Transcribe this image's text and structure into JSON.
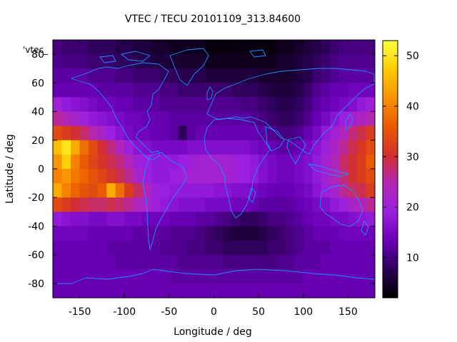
{
  "chart_data": {
    "type": "heatmap",
    "title": "VTEC / TECU 20101109_313.84600",
    "xlabel": "Longitude / deg",
    "ylabel": "Latitude / deg",
    "legend_key": "'vtec_",
    "xlim": [
      -180,
      180
    ],
    "ylim": [
      -90,
      90
    ],
    "xticks": [
      -150,
      -100,
      -50,
      0,
      50,
      100,
      150
    ],
    "yticks": [
      -80,
      -60,
      -40,
      -20,
      0,
      20,
      40,
      60,
      80
    ],
    "colorbar": {
      "min": 2,
      "max": 53,
      "ticks": [
        10,
        20,
        30,
        40,
        50
      ]
    },
    "colormap": [
      "#000000",
      "#2c0057",
      "#6a00b8",
      "#9b1fe0",
      "#b226b6",
      "#d4302d",
      "#ea5a00",
      "#f99200",
      "#ffcc00",
      "#ffff40"
    ],
    "coastline_color": "#1e90ff",
    "grid": false,
    "region_values": {
      "lon_centers": [
        -175,
        -165,
        -155,
        -145,
        -135,
        -125,
        -115,
        -105,
        -95,
        -85,
        -75,
        -65,
        -55,
        -45,
        -35,
        -25,
        -15,
        -5,
        5,
        15,
        25,
        35,
        45,
        55,
        65,
        75,
        85,
        95,
        105,
        115,
        125,
        135,
        145,
        155,
        165,
        175
      ],
      "lat_centers": [
        85,
        75,
        65,
        55,
        45,
        35,
        25,
        15,
        5,
        -5,
        -15,
        -25,
        -35,
        -45,
        -55,
        -65,
        -75,
        -85
      ],
      "vtec": [
        [
          10,
          9,
          9,
          9,
          8,
          8,
          8,
          7,
          7,
          6,
          6,
          5,
          5,
          4,
          4,
          4,
          4,
          3,
          3,
          3,
          3,
          3,
          3,
          3,
          3,
          4,
          4,
          5,
          6,
          7,
          8,
          9,
          10,
          10,
          10,
          10
        ],
        [
          11,
          10,
          10,
          10,
          9,
          9,
          9,
          8,
          8,
          7,
          7,
          6,
          6,
          5,
          5,
          5,
          5,
          4,
          4,
          4,
          4,
          4,
          4,
          4,
          4,
          5,
          5,
          6,
          7,
          8,
          9,
          10,
          11,
          11,
          11,
          11
        ],
        [
          12,
          12,
          12,
          12,
          11,
          11,
          11,
          10,
          10,
          9,
          9,
          9,
          8,
          8,
          7,
          7,
          7,
          6,
          6,
          6,
          6,
          6,
          6,
          5,
          5,
          5,
          5,
          6,
          7,
          9,
          10,
          11,
          12,
          12,
          12,
          12
        ],
        [
          13,
          13,
          13,
          13,
          13,
          12,
          12,
          12,
          12,
          11,
          11,
          11,
          10,
          10,
          9,
          9,
          9,
          9,
          9,
          9,
          8,
          8,
          8,
          7,
          6,
          6,
          6,
          7,
          9,
          11,
          12,
          13,
          13,
          14,
          14,
          14
        ],
        [
          20,
          18,
          17,
          16,
          15,
          14,
          14,
          13,
          13,
          12,
          12,
          12,
          11,
          11,
          11,
          11,
          11,
          11,
          11,
          11,
          11,
          10,
          10,
          9,
          8,
          7,
          7,
          8,
          10,
          12,
          13,
          14,
          15,
          16,
          18,
          20
        ],
        [
          26,
          24,
          22,
          20,
          18,
          17,
          16,
          15,
          14,
          14,
          13,
          13,
          13,
          12,
          12,
          12,
          12,
          12,
          12,
          12,
          12,
          12,
          11,
          10,
          9,
          8,
          8,
          9,
          11,
          13,
          15,
          17,
          19,
          21,
          23,
          25
        ],
        [
          34,
          32,
          30,
          28,
          25,
          22,
          19,
          17,
          15,
          14,
          14,
          13,
          13,
          12,
          8,
          12,
          13,
          13,
          13,
          13,
          13,
          13,
          13,
          12,
          11,
          10,
          10,
          11,
          13,
          15,
          18,
          21,
          24,
          27,
          29,
          32
        ],
        [
          46,
          50,
          44,
          38,
          34,
          30,
          27,
          24,
          20,
          17,
          16,
          15,
          15,
          15,
          15,
          16,
          16,
          16,
          16,
          16,
          16,
          16,
          15,
          14,
          13,
          12,
          12,
          13,
          15,
          17,
          20,
          23,
          26,
          29,
          31,
          34
        ],
        [
          42,
          48,
          40,
          36,
          33,
          31,
          29,
          27,
          24,
          20,
          19,
          18,
          18,
          18,
          19,
          20,
          21,
          21,
          21,
          21,
          20,
          19,
          18,
          16,
          15,
          14,
          14,
          15,
          16,
          18,
          21,
          24,
          28,
          30,
          32,
          36
        ],
        [
          40,
          42,
          39,
          37,
          35,
          33,
          31,
          29,
          26,
          22,
          19,
          18,
          18,
          19,
          20,
          21,
          21,
          21,
          21,
          21,
          20,
          19,
          18,
          16,
          15,
          14,
          14,
          15,
          16,
          18,
          21,
          24,
          27,
          30,
          32,
          34
        ],
        [
          44,
          40,
          37,
          35,
          34,
          36,
          44,
          38,
          32,
          28,
          24,
          20,
          19,
          18,
          18,
          18,
          18,
          18,
          17,
          17,
          16,
          16,
          15,
          14,
          13,
          13,
          13,
          14,
          15,
          17,
          19,
          22,
          26,
          28,
          29,
          32
        ],
        [
          34,
          32,
          30,
          29,
          28,
          28,
          29,
          28,
          26,
          24,
          22,
          20,
          18,
          17,
          16,
          16,
          16,
          15,
          15,
          15,
          14,
          14,
          13,
          12,
          12,
          12,
          12,
          13,
          14,
          15,
          16,
          18,
          20,
          22,
          24,
          26
        ],
        [
          18,
          17,
          16,
          16,
          15,
          15,
          16,
          16,
          15,
          15,
          14,
          14,
          14,
          13,
          13,
          13,
          12,
          12,
          11,
          10,
          9,
          8,
          8,
          9,
          10,
          10,
          11,
          12,
          13,
          14,
          14,
          15,
          15,
          16,
          17,
          18
        ],
        [
          14,
          14,
          14,
          14,
          13,
          13,
          13,
          13,
          13,
          12,
          12,
          12,
          12,
          11,
          11,
          11,
          10,
          9,
          8,
          7,
          6,
          6,
          6,
          7,
          8,
          9,
          10,
          11,
          12,
          13,
          13,
          13,
          14,
          14,
          14,
          14
        ],
        [
          13,
          13,
          13,
          13,
          13,
          13,
          12,
          12,
          12,
          12,
          12,
          12,
          11,
          11,
          11,
          10,
          10,
          9,
          9,
          8,
          8,
          8,
          8,
          8,
          9,
          9,
          10,
          11,
          12,
          12,
          12,
          13,
          13,
          13,
          13,
          13
        ],
        [
          13,
          13,
          13,
          13,
          13,
          13,
          13,
          12,
          12,
          12,
          12,
          12,
          12,
          12,
          11,
          11,
          11,
          11,
          11,
          10,
          10,
          10,
          10,
          10,
          10,
          11,
          11,
          12,
          12,
          12,
          13,
          13,
          13,
          13,
          13,
          13
        ],
        [
          13,
          13,
          13,
          13,
          13,
          13,
          13,
          13,
          13,
          13,
          13,
          13,
          13,
          12,
          12,
          12,
          12,
          12,
          12,
          12,
          12,
          12,
          12,
          12,
          12,
          12,
          12,
          12,
          13,
          13,
          13,
          13,
          13,
          13,
          13,
          13
        ],
        [
          13,
          13,
          13,
          13,
          13,
          13,
          13,
          13,
          13,
          13,
          13,
          13,
          13,
          13,
          13,
          13,
          13,
          13,
          13,
          13,
          13,
          13,
          13,
          13,
          13,
          13,
          13,
          13,
          13,
          13,
          13,
          13,
          13,
          13,
          13,
          13
        ]
      ]
    }
  }
}
